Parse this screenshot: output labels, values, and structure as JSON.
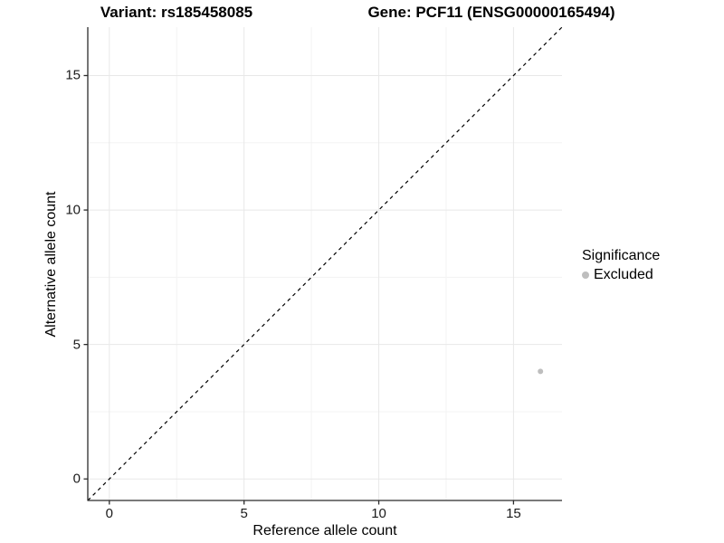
{
  "header": {
    "title_left": "Variant: rs185458085",
    "title_right": "Gene: PCF11 (ENSG00000165494)"
  },
  "chart_data": {
    "type": "scatter",
    "title_left": "Variant: rs185458085",
    "title_right": "Gene: PCF11 (ENSG00000165494)",
    "xlabel": "Reference allele count",
    "ylabel": "Alternative allele count",
    "xlim": [
      -0.8,
      16.8
    ],
    "ylim": [
      -0.8,
      16.8
    ],
    "x_ticks": [
      0,
      5,
      10,
      15
    ],
    "y_ticks": [
      0,
      5,
      10,
      15
    ],
    "x_minor_ticks": [
      2.5,
      7.5,
      12.5
    ],
    "y_minor_ticks": [
      2.5,
      7.5,
      12.5
    ],
    "grid": "on",
    "reference_line": {
      "kind": "identity",
      "slope": 1,
      "intercept": 0,
      "style": "dashed",
      "color": "#000000"
    },
    "series": [
      {
        "name": "Excluded",
        "color": "#bebebe",
        "points": [
          {
            "x": 16,
            "y": 4
          }
        ]
      }
    ],
    "legend": {
      "title": "Significance",
      "position": "right",
      "items": [
        {
          "label": "Excluded",
          "color": "#bebebe"
        }
      ]
    }
  },
  "colors": {
    "background": "#ffffff",
    "grid_major": "#e8e8e8",
    "grid_minor": "#f3f3f3",
    "axis_line": "#2b2b2b",
    "tick_mark": "#2b2b2b",
    "tick_text": "#1a1a1a",
    "point": "#bebebe"
  }
}
